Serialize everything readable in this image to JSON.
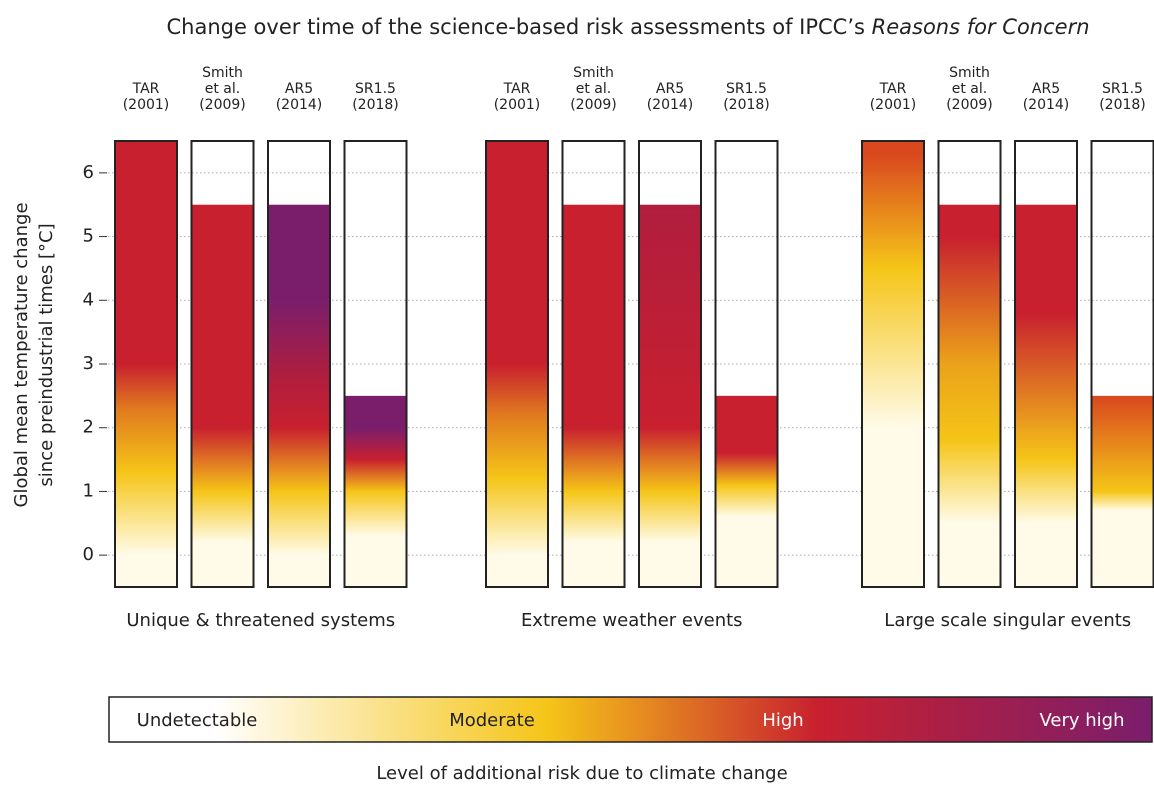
{
  "chart_data": {
    "type": "ember",
    "title": "Change over time of the science-based risk assessments of IPCC’s",
    "title_emphasis": "Reasons for Concern",
    "ylabel": [
      "Global mean temperature change",
      "since preindustrial times [°C]"
    ],
    "ylim": [
      -0.5,
      6.5
    ],
    "yticks": [
      0,
      1,
      2,
      3,
      4,
      5,
      6
    ],
    "grid": true,
    "groups": [
      {
        "name": "Unique & threatened systems",
        "assessments": [
          {
            "label": [
              "TAR",
              "(2001)"
            ],
            "top": 6.5,
            "stops": [
              {
                "value": 0,
                "color": "#fffbe8"
              },
              {
                "value": 1.3,
                "color": "#f5c518"
              },
              {
                "value": 2.3,
                "color": "#e07a1f"
              },
              {
                "value": 3,
                "color": "#c8202f"
              }
            ]
          },
          {
            "label": [
              "Smith",
              "et al.",
              "(2009)"
            ],
            "top": 5.5,
            "stops": [
              {
                "value": 0.2,
                "color": "#fffbe8"
              },
              {
                "value": 1,
                "color": "#f5c518"
              },
              {
                "value": 2,
                "color": "#c8202f"
              }
            ]
          },
          {
            "label": [
              "AR5",
              "(2014)"
            ],
            "top": 5.5,
            "stops": [
              {
                "value": 0,
                "color": "#fffbe8"
              },
              {
                "value": 1,
                "color": "#f5c518"
              },
              {
                "value": 2,
                "color": "#c8202f"
              },
              {
                "value": 2.8,
                "color": "#b01e3e"
              },
              {
                "value": 4,
                "color": "#7a1e6c"
              }
            ]
          },
          {
            "label": [
              "SR1.5",
              "(2018)"
            ],
            "top": 2.5,
            "stops": [
              {
                "value": 0.3,
                "color": "#fffbe8"
              },
              {
                "value": 1,
                "color": "#f5c518"
              },
              {
                "value": 1.5,
                "color": "#c8202f"
              },
              {
                "value": 2,
                "color": "#7a1e6c"
              }
            ]
          }
        ]
      },
      {
        "name": "Extreme weather events",
        "assessments": [
          {
            "label": [
              "TAR",
              "(2001)"
            ],
            "top": 6.5,
            "stops": [
              {
                "value": 0,
                "color": "#fffbe8"
              },
              {
                "value": 1.2,
                "color": "#f5c518"
              },
              {
                "value": 2.2,
                "color": "#e07a1f"
              },
              {
                "value": 3,
                "color": "#c8202f"
              }
            ]
          },
          {
            "label": [
              "Smith",
              "et al.",
              "(2009)"
            ],
            "top": 5.5,
            "stops": [
              {
                "value": 0.2,
                "color": "#fffbe8"
              },
              {
                "value": 1,
                "color": "#f5c518"
              },
              {
                "value": 2,
                "color": "#c8202f"
              }
            ]
          },
          {
            "label": [
              "AR5",
              "(2014)"
            ],
            "top": 5.5,
            "stops": [
              {
                "value": 0.2,
                "color": "#fffbe8"
              },
              {
                "value": 1,
                "color": "#f5c518"
              },
              {
                "value": 2,
                "color": "#c8202f"
              },
              {
                "value": 5.5,
                "color": "#b01e3e"
              }
            ]
          },
          {
            "label": [
              "SR1.5",
              "(2018)"
            ],
            "top": 2.5,
            "stops": [
              {
                "value": 0.6,
                "color": "#fffbe8"
              },
              {
                "value": 1.1,
                "color": "#f5c518"
              },
              {
                "value": 1.6,
                "color": "#c8202f"
              }
            ]
          }
        ]
      },
      {
        "name": "Large scale singular events",
        "assessments": [
          {
            "label": [
              "TAR",
              "(2001)"
            ],
            "top": 6.5,
            "stops": [
              {
                "value": 2,
                "color": "#fffbe8"
              },
              {
                "value": 4.5,
                "color": "#f5c518"
              },
              {
                "value": 6.3,
                "color": "#d9481f"
              }
            ]
          },
          {
            "label": [
              "Smith",
              "et al.",
              "(2009)"
            ],
            "top": 5.5,
            "stops": [
              {
                "value": 0.5,
                "color": "#fffbe8"
              },
              {
                "value": 1.8,
                "color": "#f5c518"
              },
              {
                "value": 3,
                "color": "#eba21a"
              },
              {
                "value": 5,
                "color": "#c8202f"
              }
            ]
          },
          {
            "label": [
              "AR5",
              "(2014)"
            ],
            "top": 5.5,
            "stops": [
              {
                "value": 0.5,
                "color": "#fffbe8"
              },
              {
                "value": 1.5,
                "color": "#f5c518"
              },
              {
                "value": 3.8,
                "color": "#c8202f"
              }
            ]
          },
          {
            "label": [
              "SR1.5",
              "(2018)"
            ],
            "top": 2.5,
            "stops": [
              {
                "value": 0.7,
                "color": "#fffbe8"
              },
              {
                "value": 1,
                "color": "#f5c518"
              },
              {
                "value": 2.5,
                "color": "#d9481f"
              }
            ]
          }
        ]
      }
    ],
    "legend": {
      "levels": [
        {
          "name": "Undetectable",
          "color": "#ffffff"
        },
        {
          "name": "Moderate",
          "color": "#f5c518"
        },
        {
          "name": "High",
          "color": "#c8202f"
        },
        {
          "name": "Very high",
          "color": "#7a1e6c"
        }
      ],
      "caption": "Level of additional risk due to climate change"
    }
  }
}
